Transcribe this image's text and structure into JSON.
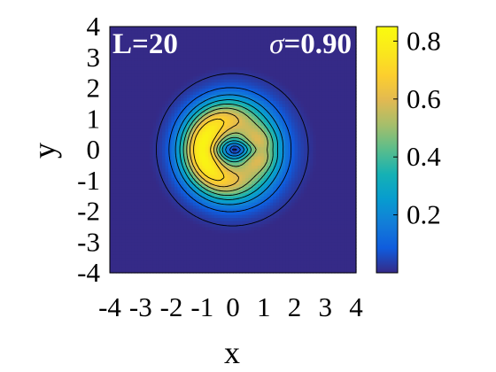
{
  "chart_data": {
    "type": "heatmap",
    "title": "",
    "xlabel": "x",
    "ylabel": "y",
    "xlim": [
      -4,
      4
    ],
    "ylim": [
      -4,
      4
    ],
    "xticks": [
      "-4",
      "-3",
      "-2",
      "-1",
      "0",
      "1",
      "2",
      "3",
      "4"
    ],
    "yticks": [
      "4",
      "3",
      "2",
      "1",
      "0",
      "-1",
      "-2",
      "-3",
      "-4"
    ],
    "annotations": {
      "left": "L=20",
      "right_symbol": "σ",
      "right_value": "=0.90"
    },
    "colorbar": {
      "colormap": "parula",
      "range": [
        0,
        0.85
      ],
      "ticks": [
        0.2,
        0.4,
        0.6,
        0.8
      ],
      "tick_labels": [
        "0.2",
        "0.4",
        "0.6",
        "0.8"
      ]
    },
    "contour_levels": [
      0.02,
      0.1,
      0.2,
      0.3,
      0.4,
      0.5,
      0.6,
      0.7
    ],
    "field_description": {
      "support_radius": 2.7,
      "max_value": 0.82,
      "crescent_peak": [
        -1.0,
        0.0
      ],
      "inner_peak": [
        0.8,
        0.0
      ]
    }
  }
}
